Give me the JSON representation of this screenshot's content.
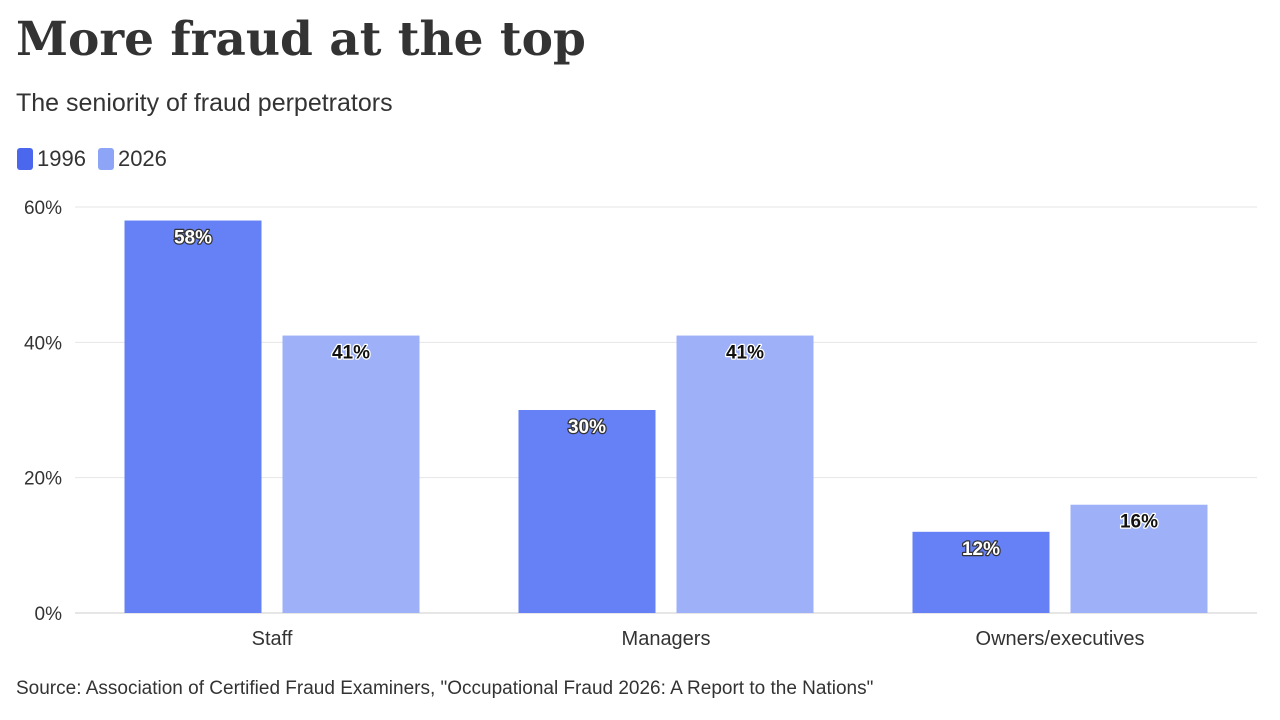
{
  "title": "More fraud at the top",
  "subtitle": "The seniority of fraud perpetrators",
  "source": "Source: Association of Certified Fraud Examiners, \"Occupational Fraud 2026: A Report to the Nations\"",
  "colors": {
    "series_1996": "#6680f5",
    "series_2026": "#9db0f8",
    "legend_1996": "#4a67ee",
    "legend_2026": "#8ea5f7",
    "grid": "#e6e6e6",
    "axis": "#cccccc",
    "text": "#333333"
  },
  "chart_data": {
    "type": "bar",
    "categories": [
      "Staff",
      "Managers",
      "Owners/executives"
    ],
    "series": [
      {
        "name": "1996",
        "values": [
          58,
          30,
          12
        ]
      },
      {
        "name": "2026",
        "values": [
          41,
          41,
          16
        ]
      }
    ],
    "data_labels": [
      [
        "58%",
        "30%",
        "12%"
      ],
      [
        "41%",
        "41%",
        "16%"
      ]
    ],
    "xlabel": "",
    "ylabel": "",
    "ylim": [
      0,
      60
    ],
    "yticks": [
      0,
      20,
      40,
      60
    ],
    "ytick_labels": [
      "0%",
      "20%",
      "40%",
      "60%"
    ],
    "grid": true,
    "legend_position": "top-left"
  }
}
